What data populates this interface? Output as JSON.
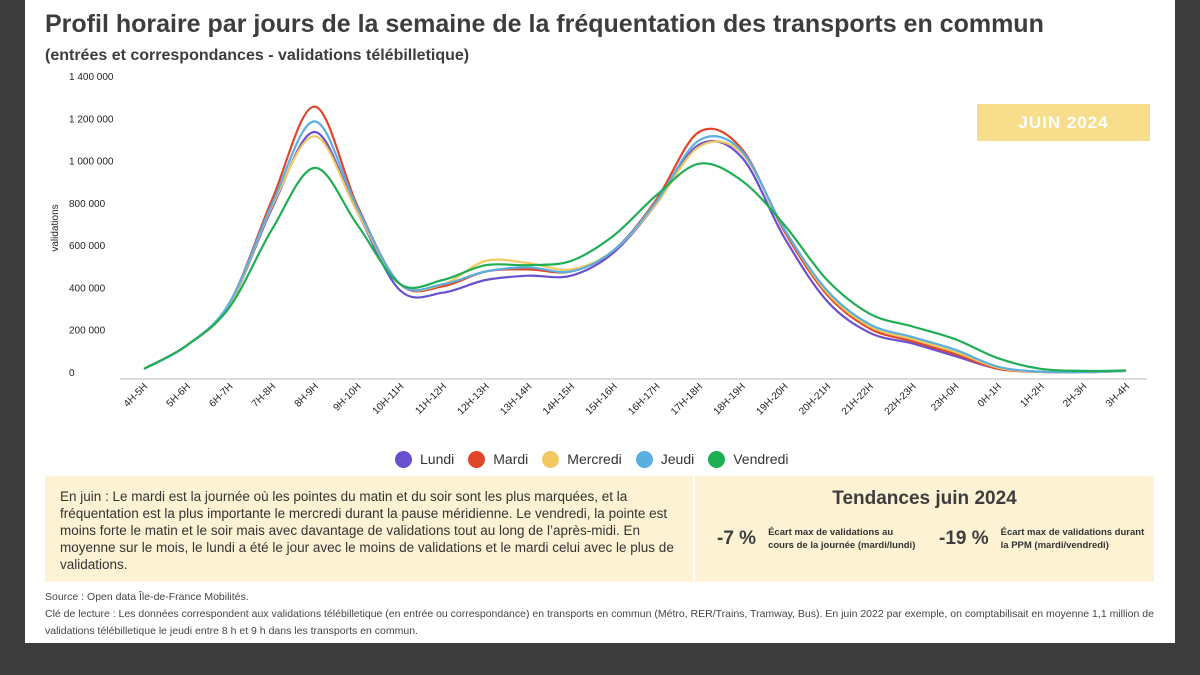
{
  "title": "Profil horaire par jours de la semaine de la fréquentation des transports en commun",
  "subtitle": "(entrées et correspondances - validations télébilletique)",
  "badge": "JUIN 2024",
  "info_text": "En juin : Le mardi est la journée où les pointes du matin et du soir sont les plus marquées, et la fréquentation est la plus importante le mercredi durant la pause méridienne. Le vendredi, la pointe est moins forte le matin et le soir mais avec davantage de validations tout au long de l’après-midi. En moyenne sur le mois, le lundi a été le jour avec le moins de validations et le mardi celui avec le plus de validations.",
  "trends": {
    "title": "Tendances juin 2024",
    "items": [
      {
        "value": "-7 %",
        "desc": "Écart max de validations au cours de la journée (mardi/lundi)"
      },
      {
        "value": "-19 %",
        "desc": "Écart max de validations durant la PPM (mardi/vendredi)"
      }
    ]
  },
  "footer": {
    "source": "Source : Open data Île-de-France Mobilités.",
    "key": "Clé de lecture : Les données correspondent aux validations télébilletique (en entrée ou correspondance) en transports en commun (Métro, RER/Trains, Tramway, Bus). En juin 2022 par exemple, on comptabilisait en moyenne 1,1 million de validations télébilletique le jeudi entre 8 h et 9 h dans les transports en commun."
  },
  "chart_data": {
    "type": "line",
    "ylabel": "validations",
    "ylim": [
      0,
      1400000
    ],
    "yticks": [
      0,
      200000,
      400000,
      600000,
      800000,
      1000000,
      1200000,
      1400000
    ],
    "ytick_labels": [
      "0",
      "200 000",
      "400 000",
      "600 000",
      "800 000",
      "1 000 000",
      "1 200 000",
      "1 400 000"
    ],
    "grid": false,
    "legend": "bottom",
    "categories": [
      "4H-5H",
      "5H-6H",
      "6H-7H",
      "7H-8H",
      "8H-9H",
      "9H-10H",
      "10H-11H",
      "11H-12H",
      "12H-13H",
      "13H-14H",
      "14H-15H",
      "15H-16H",
      "16H-17H",
      "17H-18H",
      "18H-19H",
      "19H-20H",
      "20H-21H",
      "21H-22H",
      "22H-23H",
      "23H-0H",
      "0H-1H",
      "1H-2H",
      "2H-3H",
      "3H-4H"
    ],
    "series": [
      {
        "name": "Lundi",
        "color": "#6a4fcf",
        "values": [
          20000,
          130000,
          320000,
          780000,
          1140000,
          760000,
          390000,
          380000,
          440000,
          460000,
          460000,
          570000,
          800000,
          1080000,
          1020000,
          640000,
          340000,
          190000,
          140000,
          80000,
          20000,
          5000,
          3000,
          10000
        ]
      },
      {
        "name": "Mardi",
        "color": "#e0472a",
        "values": [
          20000,
          130000,
          330000,
          820000,
          1260000,
          790000,
          420000,
          410000,
          480000,
          490000,
          480000,
          580000,
          820000,
          1140000,
          1060000,
          670000,
          370000,
          210000,
          150000,
          90000,
          20000,
          5000,
          3000,
          10000
        ]
      },
      {
        "name": "Mercredi",
        "color": "#f1c862",
        "values": [
          20000,
          130000,
          320000,
          790000,
          1120000,
          760000,
          420000,
          420000,
          530000,
          520000,
          490000,
          580000,
          800000,
          1070000,
          1040000,
          680000,
          380000,
          220000,
          160000,
          100000,
          25000,
          5000,
          3000,
          10000
        ]
      },
      {
        "name": "Jeudi",
        "color": "#5aafe0",
        "values": [
          20000,
          130000,
          330000,
          800000,
          1190000,
          780000,
          420000,
          420000,
          480000,
          500000,
          480000,
          580000,
          810000,
          1100000,
          1050000,
          680000,
          390000,
          230000,
          170000,
          110000,
          30000,
          6000,
          4000,
          10000
        ]
      },
      {
        "name": "Vendredi",
        "color": "#1fae54",
        "values": [
          20000,
          130000,
          310000,
          680000,
          970000,
          700000,
          420000,
          440000,
          510000,
          510000,
          530000,
          650000,
          840000,
          990000,
          910000,
          700000,
          440000,
          280000,
          220000,
          160000,
          70000,
          20000,
          10000,
          12000
        ]
      }
    ]
  }
}
